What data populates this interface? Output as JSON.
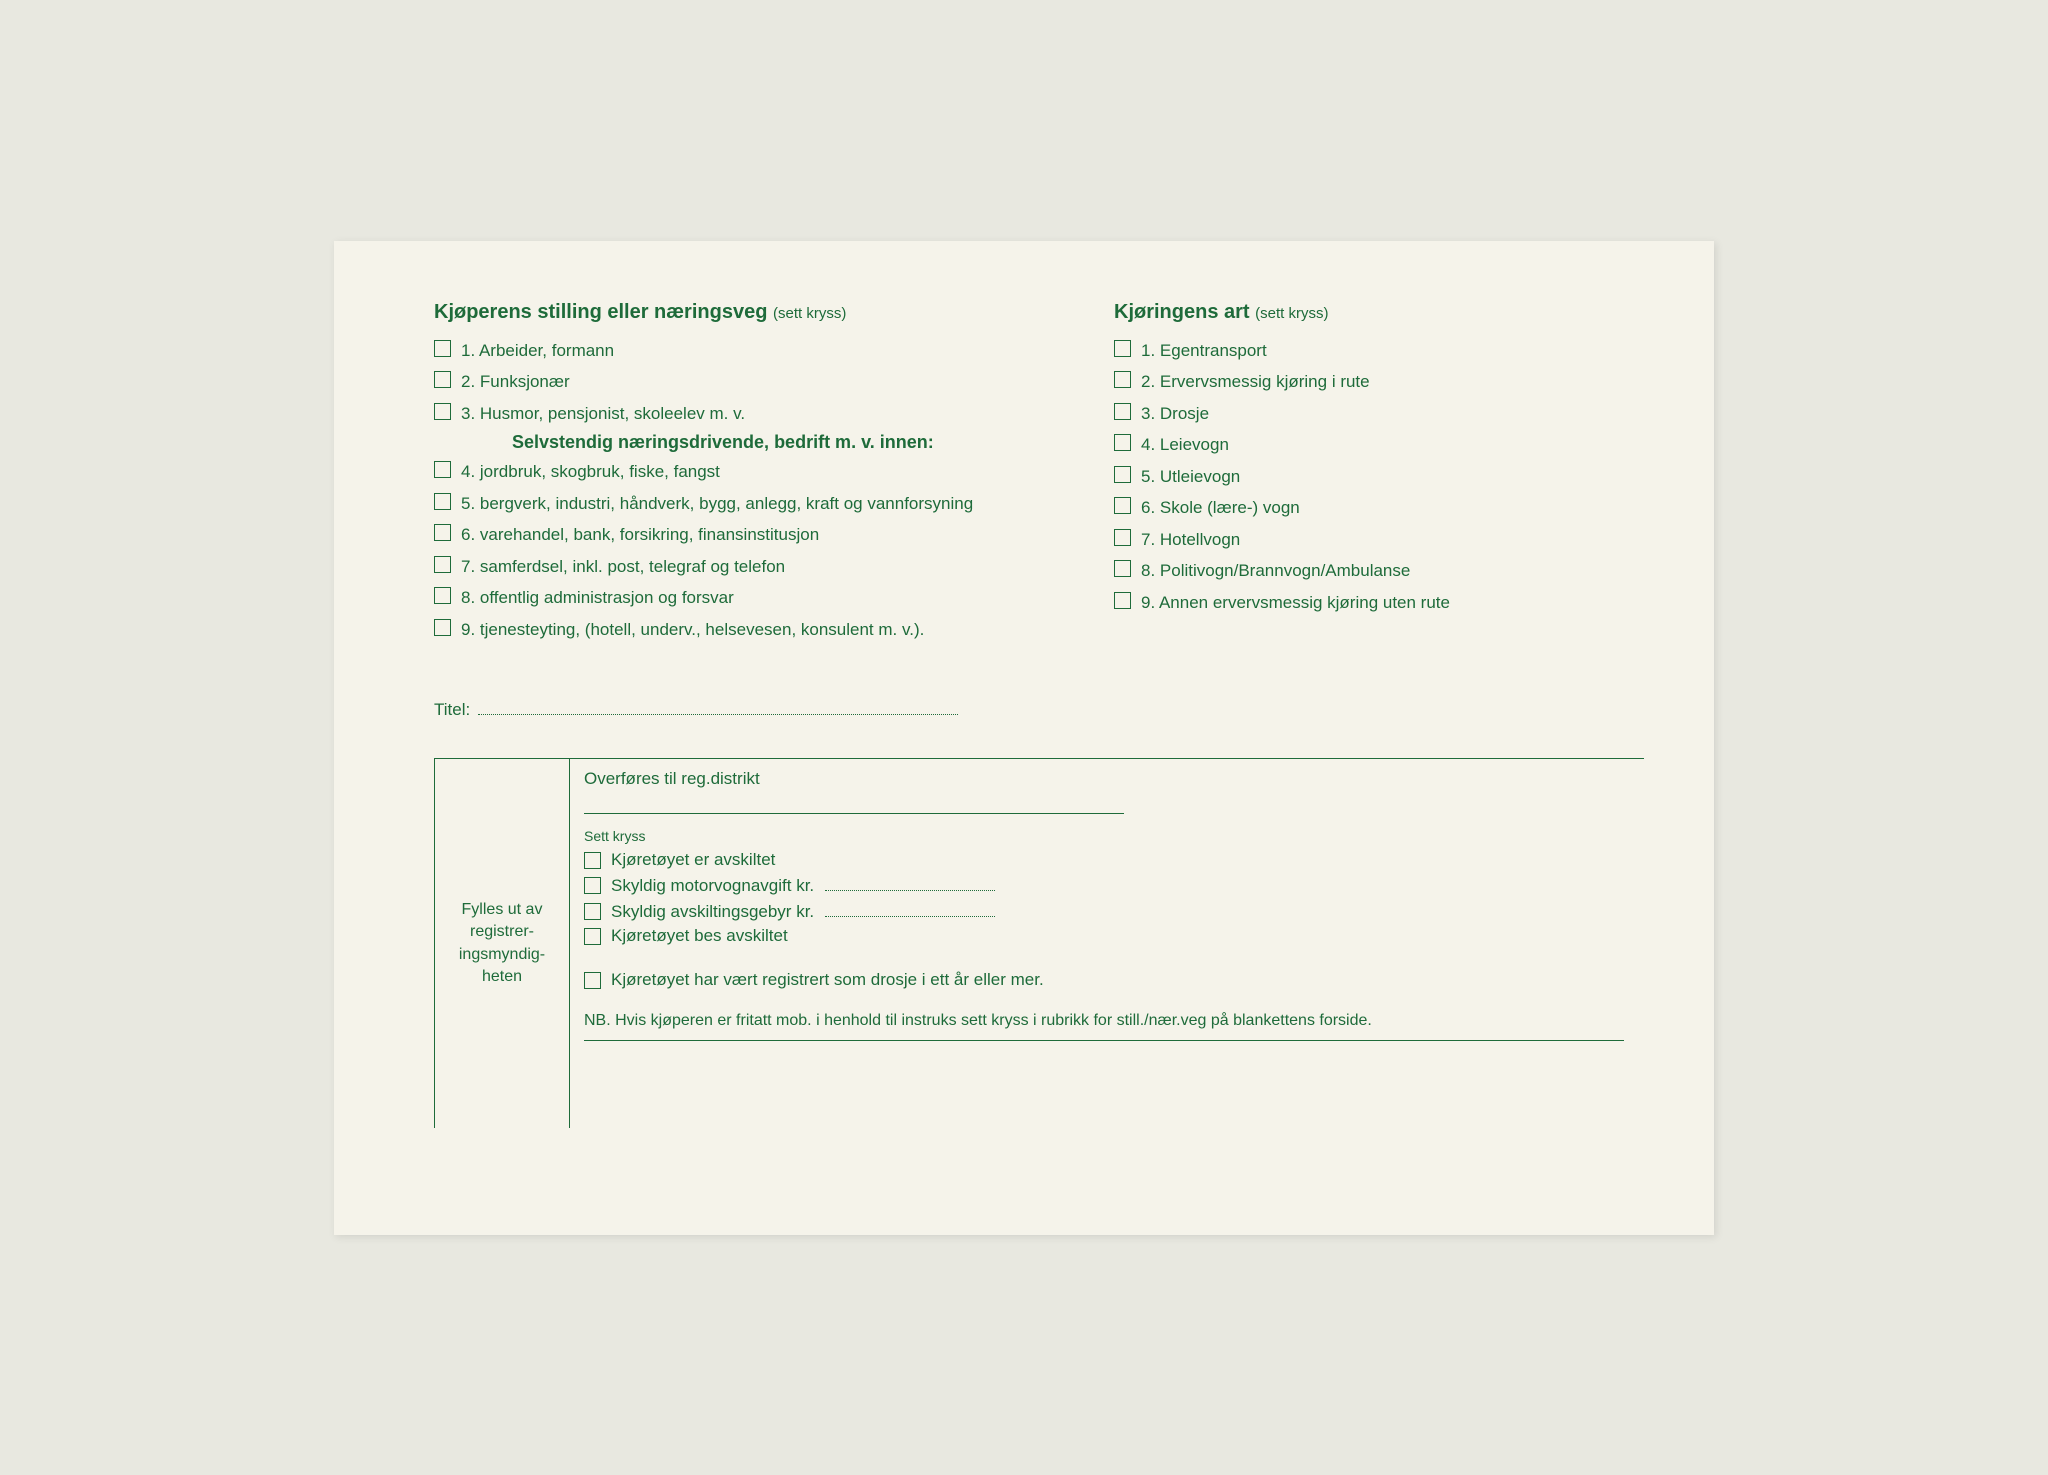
{
  "colors": {
    "ink": "#1e6b3a",
    "paper": "#f5f3ea",
    "background": "#e8e8e0"
  },
  "leftSection": {
    "heading": "Kjøperens stilling eller næringsveg",
    "headingNote": "(sett kryss)",
    "items1": [
      "1. Arbeider, formann",
      "2. Funksjonær",
      "3. Husmor, pensjonist, skoleelev m. v."
    ],
    "subheading": "Selvstendig næringsdrivende, bedrift m. v. innen:",
    "items2": [
      "4. jordbruk, skogbruk, fiske, fangst",
      "5. bergverk, industri, håndverk, bygg, anlegg, kraft og vannforsyning",
      "6. varehandel, bank, forsikring, finansinstitusjon",
      "7. samferdsel, inkl. post, telegraf og telefon",
      "8. offentlig administrasjon og forsvar",
      "9. tjenesteyting, (hotell, underv., helsevesen, konsulent m. v.)."
    ]
  },
  "rightSection": {
    "heading": "Kjøringens art",
    "headingNote": "(sett kryss)",
    "items": [
      "1. Egentransport",
      "2. Ervervsmessig kjøring i rute",
      "3. Drosje",
      "4. Leievogn",
      "5. Utleievogn",
      "6. Skole (lære-) vogn",
      "7. Hotellvogn",
      "8. Politivogn/Brannvogn/Ambulanse",
      "9. Annen ervervsmessig kjøring uten rute"
    ]
  },
  "titelLabel": "Titel:",
  "official": {
    "sideLabel": "Fylles ut av registrer-ingsmyndig-heten",
    "districtLabel": "Overføres til reg.distrikt",
    "settKryss": "Sett kryss",
    "items": [
      "Kjøretøyet er avskiltet",
      "Skyldig motorvognavgift kr.",
      "Skyldig avskiltingsgebyr kr.",
      "Kjøretøyet bes avskiltet"
    ],
    "lastItem": "Kjøretøyet har vært registrert som drosje i ett år eller mer.",
    "nbText": "NB. Hvis kjøperen er fritatt mob. i henhold til instruks sett kryss i rubrikk for still./nær.veg på blankettens forside."
  }
}
